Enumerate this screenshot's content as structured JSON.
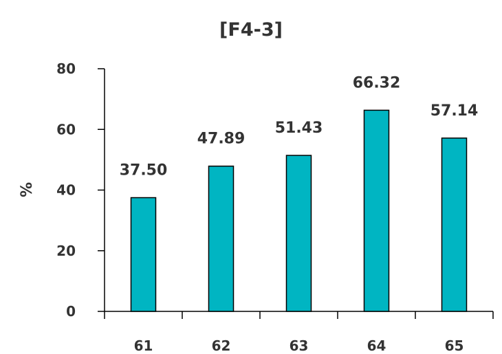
{
  "chart_data": {
    "type": "bar",
    "title": "[F4-3]",
    "xlabel": "",
    "ylabel": "%",
    "categories": [
      "61",
      "62",
      "63",
      "64",
      "65"
    ],
    "values": [
      37.5,
      47.89,
      51.43,
      66.32,
      57.14
    ],
    "data_labels": [
      "37.50",
      "47.89",
      "51.43",
      "66.32",
      "57.14"
    ],
    "ylim": [
      0,
      80
    ],
    "yticks": [
      "0",
      "20",
      "40",
      "60",
      "80"
    ],
    "grid": false,
    "legend": "none",
    "bar_color": "#00B5C2"
  }
}
